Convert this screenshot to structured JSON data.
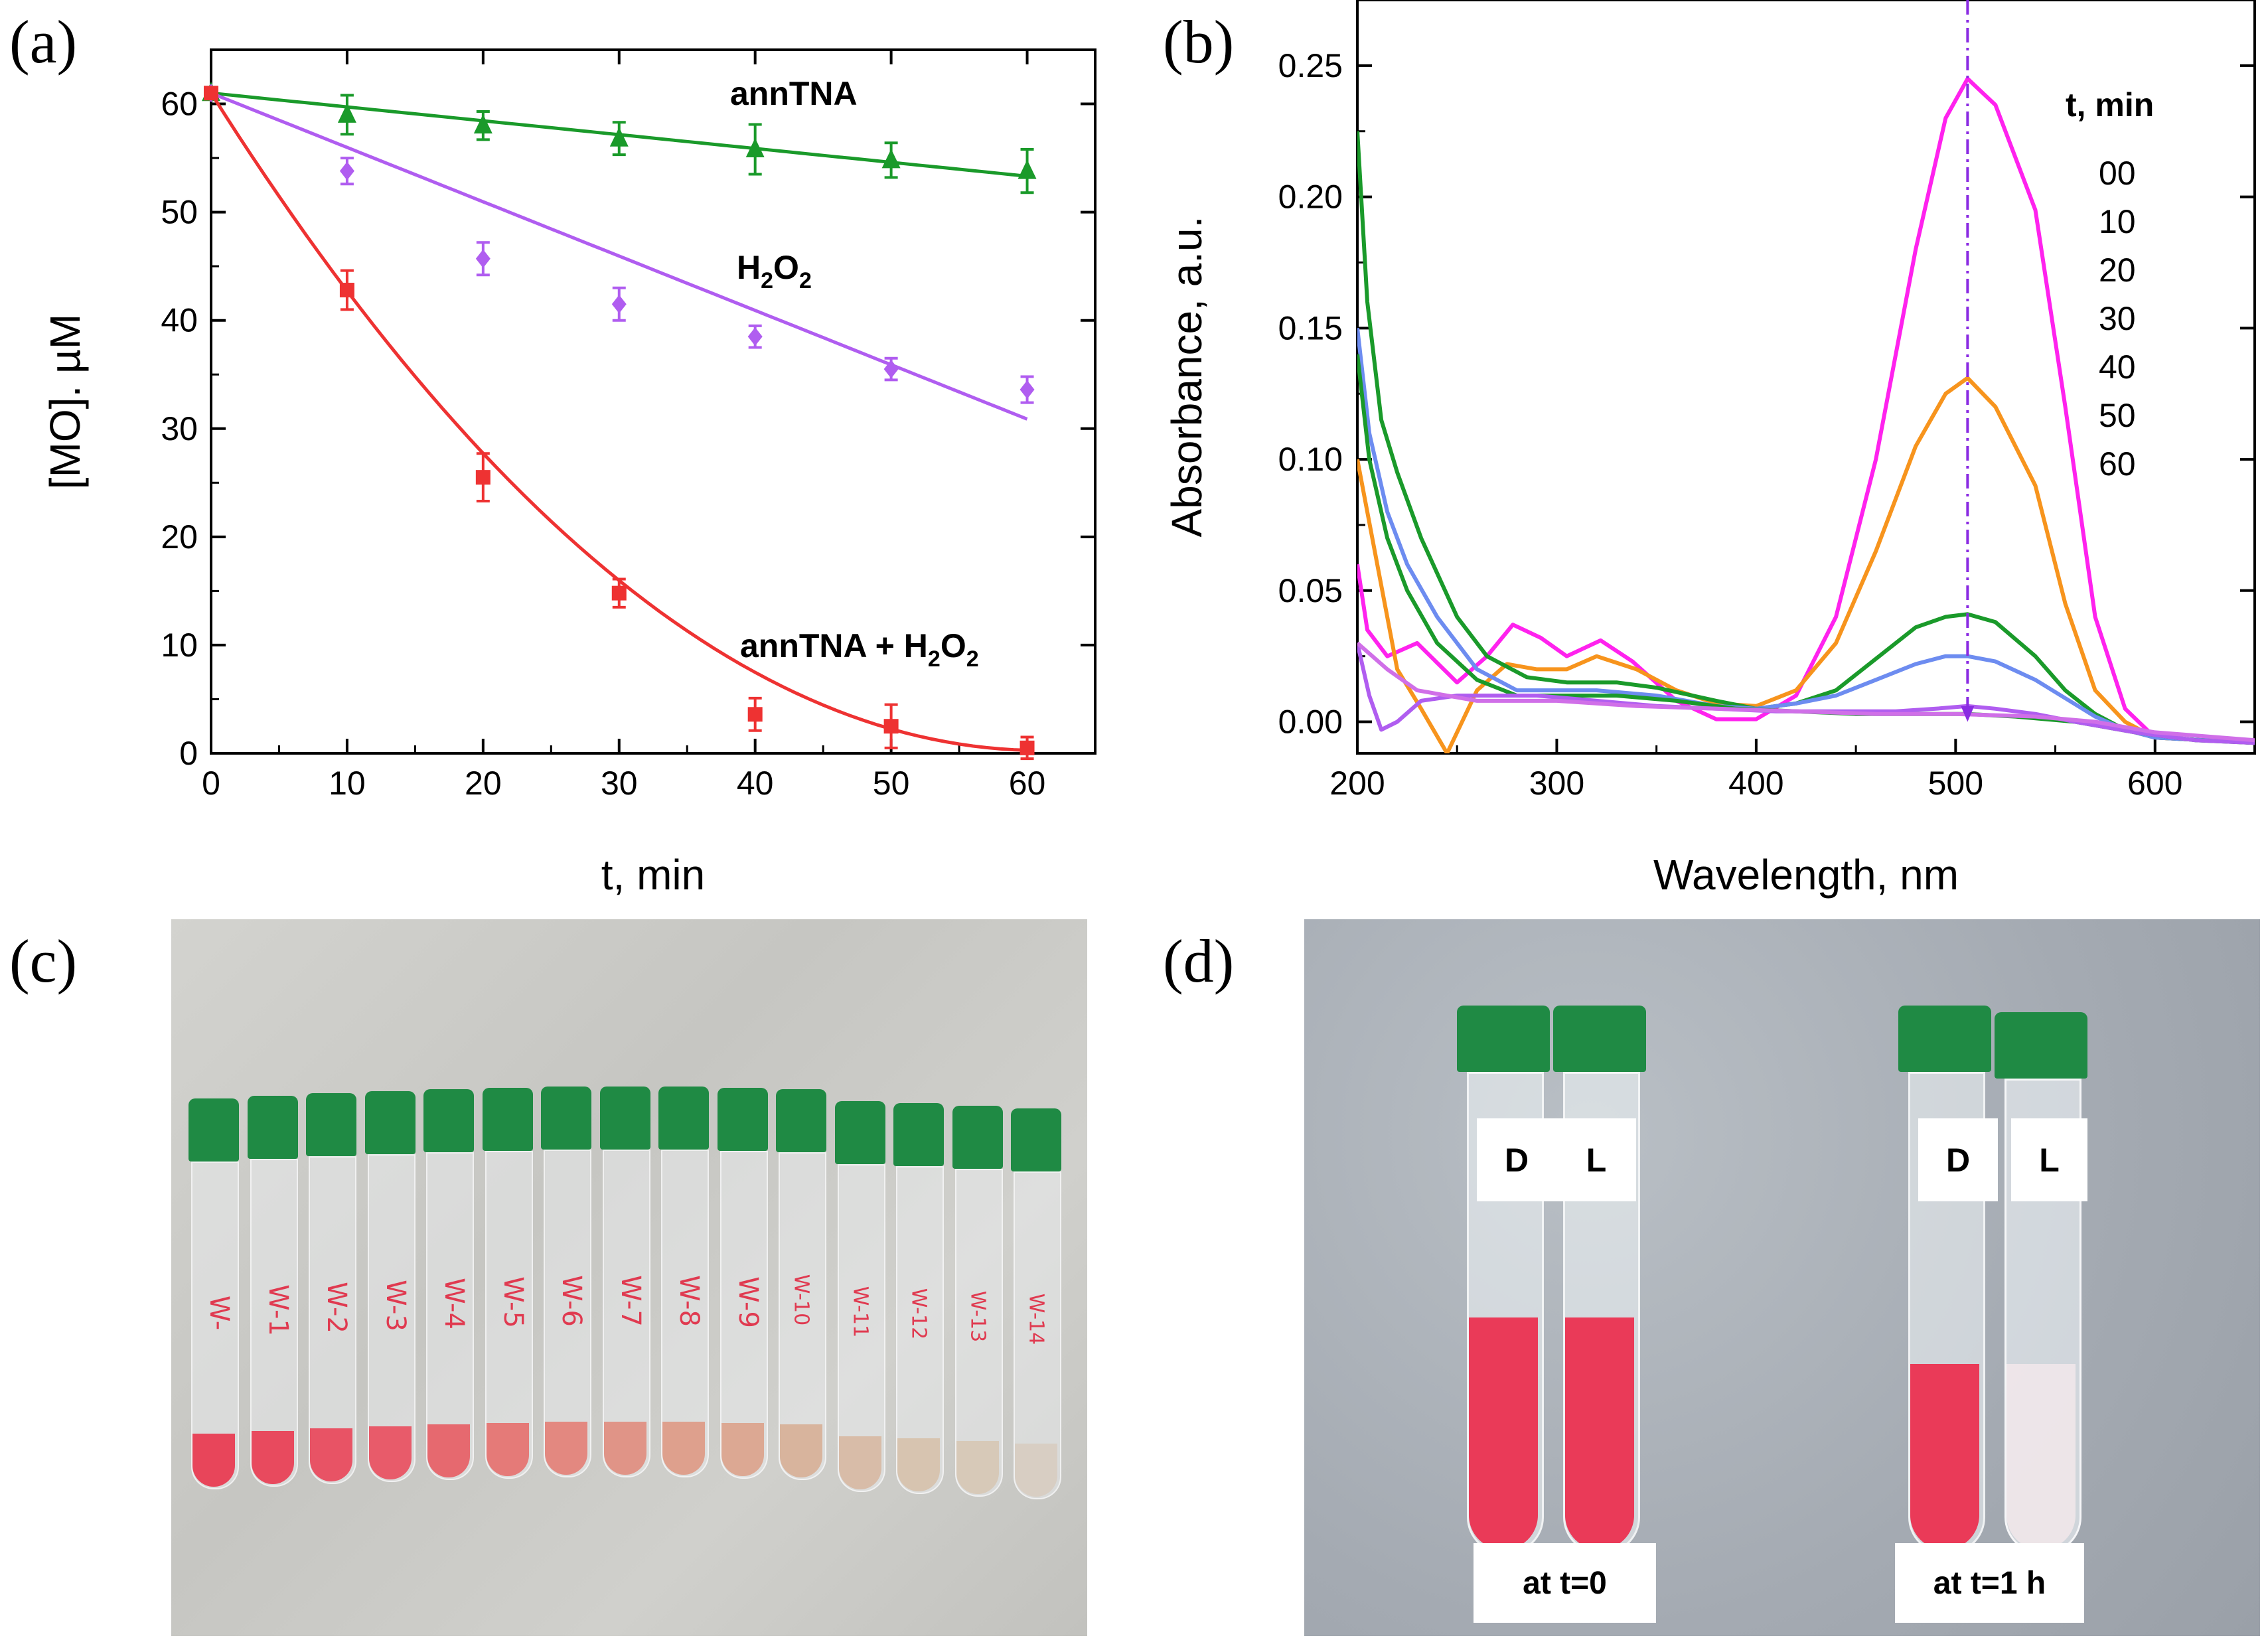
{
  "panels": {
    "a": {
      "letter": "(a)"
    },
    "b": {
      "letter": "(b)"
    },
    "c": {
      "letter": "(c)"
    },
    "d": {
      "letter": "(d)"
    }
  },
  "chart_data": [
    {
      "panel": "a",
      "type": "scatter",
      "xlabel": "t, min",
      "ylabel": "[MO]. µM",
      "xlim": [
        0,
        65
      ],
      "ylim": [
        0,
        65
      ],
      "xticks": [
        "0",
        "10",
        "20",
        "30",
        "40",
        "50",
        "60"
      ],
      "yticks": [
        "0",
        "10",
        "20",
        "30",
        "40",
        "50",
        "60"
      ],
      "series": [
        {
          "name": "annTNA",
          "label_main": "annTNA",
          "color": "#1a9a2a",
          "marker": "triangle",
          "x": [
            0,
            10,
            20,
            30,
            40,
            50,
            60
          ],
          "y": [
            61,
            59,
            58,
            56.8,
            55.8,
            54.8,
            53.8
          ],
          "err": [
            0,
            1.8,
            1.3,
            1.5,
            2.3,
            1.6,
            2.0
          ],
          "fit": {
            "kind": "linear",
            "y0": 61,
            "slope": -0.128
          }
        },
        {
          "name": "H2O2",
          "label_main": "H",
          "label_sub": "2",
          "label_tail": "O",
          "label_sub2": "2",
          "color": "#b05df0",
          "marker": "diamond",
          "x": [
            0,
            10,
            20,
            30,
            40,
            50,
            60
          ],
          "y": [
            61,
            53.8,
            45.7,
            41.5,
            38.5,
            35.5,
            33.6
          ],
          "err": [
            0,
            1.2,
            1.5,
            1.5,
            1.0,
            1.0,
            1.2
          ],
          "fit": {
            "kind": "linear",
            "y0": 61,
            "slope": -0.502
          }
        },
        {
          "name": "annTNA + H2O2",
          "label_main": "annTNA + H",
          "label_sub": "2",
          "label_tail": "O",
          "label_sub2": "2",
          "color": "#ee3232",
          "marker": "square",
          "x": [
            0,
            10,
            20,
            30,
            40,
            50,
            60
          ],
          "y": [
            61,
            42.8,
            25.5,
            14.8,
            3.6,
            2.5,
            0.5
          ],
          "err": [
            0,
            1.8,
            2.2,
            1.3,
            1.5,
            2.0,
            1.0
          ],
          "fit": {
            "kind": "quadratic",
            "a": 0.0163,
            "b": -1.99,
            "c": 61
          }
        }
      ]
    },
    {
      "panel": "b",
      "type": "line",
      "xlabel": "Wavelength, nm",
      "ylabel": "Absorbance, a.u.",
      "xlim": [
        200,
        650
      ],
      "ylim": [
        -0.012,
        0.275
      ],
      "xticks": [
        "200",
        "300",
        "400",
        "500",
        "600"
      ],
      "yticks": [
        "0.00",
        "0.05",
        "0.10",
        "0.15",
        "0.20",
        "0.25"
      ],
      "marker_line_x": 506,
      "legend_title": "t, min",
      "legend_entries": [
        "00",
        "10",
        "20",
        "30",
        "40",
        "50",
        "60"
      ],
      "series": [
        {
          "name": "00",
          "color": "#ff22ee",
          "pts": [
            [
              200,
              0.06
            ],
            [
              205,
              0.035
            ],
            [
              215,
              0.025
            ],
            [
              230,
              0.03
            ],
            [
              250,
              0.015
            ],
            [
              265,
              0.025
            ],
            [
              278,
              0.037
            ],
            [
              292,
              0.032
            ],
            [
              305,
              0.025
            ],
            [
              322,
              0.031
            ],
            [
              338,
              0.023
            ],
            [
              360,
              0.008
            ],
            [
              380,
              0.001
            ],
            [
              400,
              0.001
            ],
            [
              420,
              0.01
            ],
            [
              440,
              0.04
            ],
            [
              460,
              0.1
            ],
            [
              480,
              0.18
            ],
            [
              495,
              0.23
            ],
            [
              506,
              0.245
            ],
            [
              520,
              0.235
            ],
            [
              540,
              0.195
            ],
            [
              555,
              0.12
            ],
            [
              570,
              0.04
            ],
            [
              585,
              0.005
            ],
            [
              600,
              -0.006
            ],
            [
              650,
              -0.008
            ]
          ]
        },
        {
          "name": "10",
          "color": "#f7941d",
          "pts": [
            [
              200,
              0.1
            ],
            [
              210,
              0.06
            ],
            [
              220,
              0.02
            ],
            [
              232,
              0.005
            ],
            [
              245,
              -0.012
            ],
            [
              260,
              0.012
            ],
            [
              275,
              0.022
            ],
            [
              290,
              0.02
            ],
            [
              305,
              0.02
            ],
            [
              320,
              0.025
            ],
            [
              340,
              0.02
            ],
            [
              360,
              0.012
            ],
            [
              380,
              0.007
            ],
            [
              400,
              0.006
            ],
            [
              420,
              0.012
            ],
            [
              440,
              0.03
            ],
            [
              460,
              0.065
            ],
            [
              480,
              0.105
            ],
            [
              495,
              0.125
            ],
            [
              506,
              0.131
            ],
            [
              520,
              0.12
            ],
            [
              540,
              0.09
            ],
            [
              555,
              0.045
            ],
            [
              570,
              0.012
            ],
            [
              585,
              0.0
            ],
            [
              600,
              -0.006
            ],
            [
              650,
              -0.008
            ]
          ]
        },
        {
          "name": "20",
          "color": "#1a9a2a",
          "pts": [
            [
              200,
              0.225
            ],
            [
              205,
              0.16
            ],
            [
              212,
              0.115
            ],
            [
              220,
              0.095
            ],
            [
              232,
              0.07
            ],
            [
              250,
              0.04
            ],
            [
              265,
              0.025
            ],
            [
              285,
              0.017
            ],
            [
              305,
              0.015
            ],
            [
              330,
              0.015
            ],
            [
              350,
              0.013
            ],
            [
              380,
              0.008
            ],
            [
              400,
              0.005
            ],
            [
              420,
              0.007
            ],
            [
              440,
              0.012
            ],
            [
              460,
              0.024
            ],
            [
              480,
              0.036
            ],
            [
              495,
              0.04
            ],
            [
              506,
              0.041
            ],
            [
              520,
              0.038
            ],
            [
              540,
              0.025
            ],
            [
              555,
              0.012
            ],
            [
              570,
              0.003
            ],
            [
              585,
              -0.003
            ],
            [
              600,
              -0.006
            ],
            [
              650,
              -0.008
            ]
          ]
        },
        {
          "name": "30",
          "color": "#6d8cf0",
          "pts": [
            [
              200,
              0.15
            ],
            [
              206,
              0.11
            ],
            [
              215,
              0.08
            ],
            [
              225,
              0.06
            ],
            [
              240,
              0.04
            ],
            [
              260,
              0.02
            ],
            [
              280,
              0.012
            ],
            [
              300,
              0.012
            ],
            [
              320,
              0.012
            ],
            [
              350,
              0.01
            ],
            [
              380,
              0.006
            ],
            [
              400,
              0.005
            ],
            [
              420,
              0.007
            ],
            [
              440,
              0.01
            ],
            [
              460,
              0.016
            ],
            [
              480,
              0.022
            ],
            [
              495,
              0.025
            ],
            [
              506,
              0.025
            ],
            [
              520,
              0.023
            ],
            [
              540,
              0.016
            ],
            [
              555,
              0.009
            ],
            [
              570,
              0.002
            ],
            [
              585,
              -0.003
            ],
            [
              600,
              -0.006
            ],
            [
              650,
              -0.008
            ]
          ]
        },
        {
          "name": "40",
          "color": "#1a9a2a",
          "pts": [
            [
              200,
              0.14
            ],
            [
              206,
              0.1
            ],
            [
              215,
              0.07
            ],
            [
              225,
              0.05
            ],
            [
              240,
              0.03
            ],
            [
              260,
              0.016
            ],
            [
              280,
              0.01
            ],
            [
              300,
              0.01
            ],
            [
              330,
              0.01
            ],
            [
              360,
              0.008
            ],
            [
              390,
              0.005
            ],
            [
              420,
              0.004
            ],
            [
              450,
              0.003
            ],
            [
              480,
              0.003
            ],
            [
              506,
              0.003
            ],
            [
              530,
              0.002
            ],
            [
              560,
              0.0
            ],
            [
              590,
              -0.004
            ],
            [
              620,
              -0.007
            ],
            [
              650,
              -0.008
            ]
          ]
        },
        {
          "name": "50",
          "color": "#b05df0",
          "pts": [
            [
              200,
              0.03
            ],
            [
              206,
              0.01
            ],
            [
              212,
              -0.003
            ],
            [
              220,
              0.0
            ],
            [
              232,
              0.008
            ],
            [
              250,
              0.01
            ],
            [
              270,
              0.01
            ],
            [
              290,
              0.01
            ],
            [
              320,
              0.008
            ],
            [
              350,
              0.006
            ],
            [
              380,
              0.005
            ],
            [
              410,
              0.004
            ],
            [
              440,
              0.004
            ],
            [
              470,
              0.004
            ],
            [
              490,
              0.005
            ],
            [
              506,
              0.006
            ],
            [
              520,
              0.005
            ],
            [
              540,
              0.003
            ],
            [
              560,
              0.0
            ],
            [
              590,
              -0.004
            ],
            [
              620,
              -0.007
            ],
            [
              650,
              -0.008
            ]
          ]
        },
        {
          "name": "60",
          "color": "#d06fe8",
          "pts": [
            [
              200,
              0.03
            ],
            [
              215,
              0.02
            ],
            [
              230,
              0.012
            ],
            [
              260,
              0.008
            ],
            [
              300,
              0.008
            ],
            [
              340,
              0.006
            ],
            [
              380,
              0.005
            ],
            [
              420,
              0.004
            ],
            [
              460,
              0.003
            ],
            [
              500,
              0.003
            ],
            [
              540,
              0.002
            ],
            [
              570,
              0.0
            ],
            [
              600,
              -0.004
            ],
            [
              650,
              -0.007
            ]
          ]
        }
      ]
    }
  ],
  "photo_c": {
    "tubes": [
      "W-",
      "W-1",
      "W-2",
      "W-3",
      "W-4",
      "W-5",
      "W-6",
      "W-7",
      "W-8",
      "W-9",
      "W-10",
      "W-11",
      "W-12",
      "W-13",
      "W-14"
    ],
    "liquid_colors": [
      "#e8455a",
      "#e84a5e",
      "#e85365",
      "#e85b6a",
      "#e6696f",
      "#e57a78",
      "#e38880",
      "#e09487",
      "#dea08d",
      "#dca893",
      "#d8b49d",
      "#d8bca8",
      "#d7c4b0",
      "#d7c9b8",
      "#d8cec3"
    ]
  },
  "photo_d": {
    "left_label_d": "D",
    "left_label_l": "L",
    "left_caption": "at t=0",
    "right_label_d": "D",
    "right_label_l": "L",
    "right_caption": "at t=1 h"
  }
}
